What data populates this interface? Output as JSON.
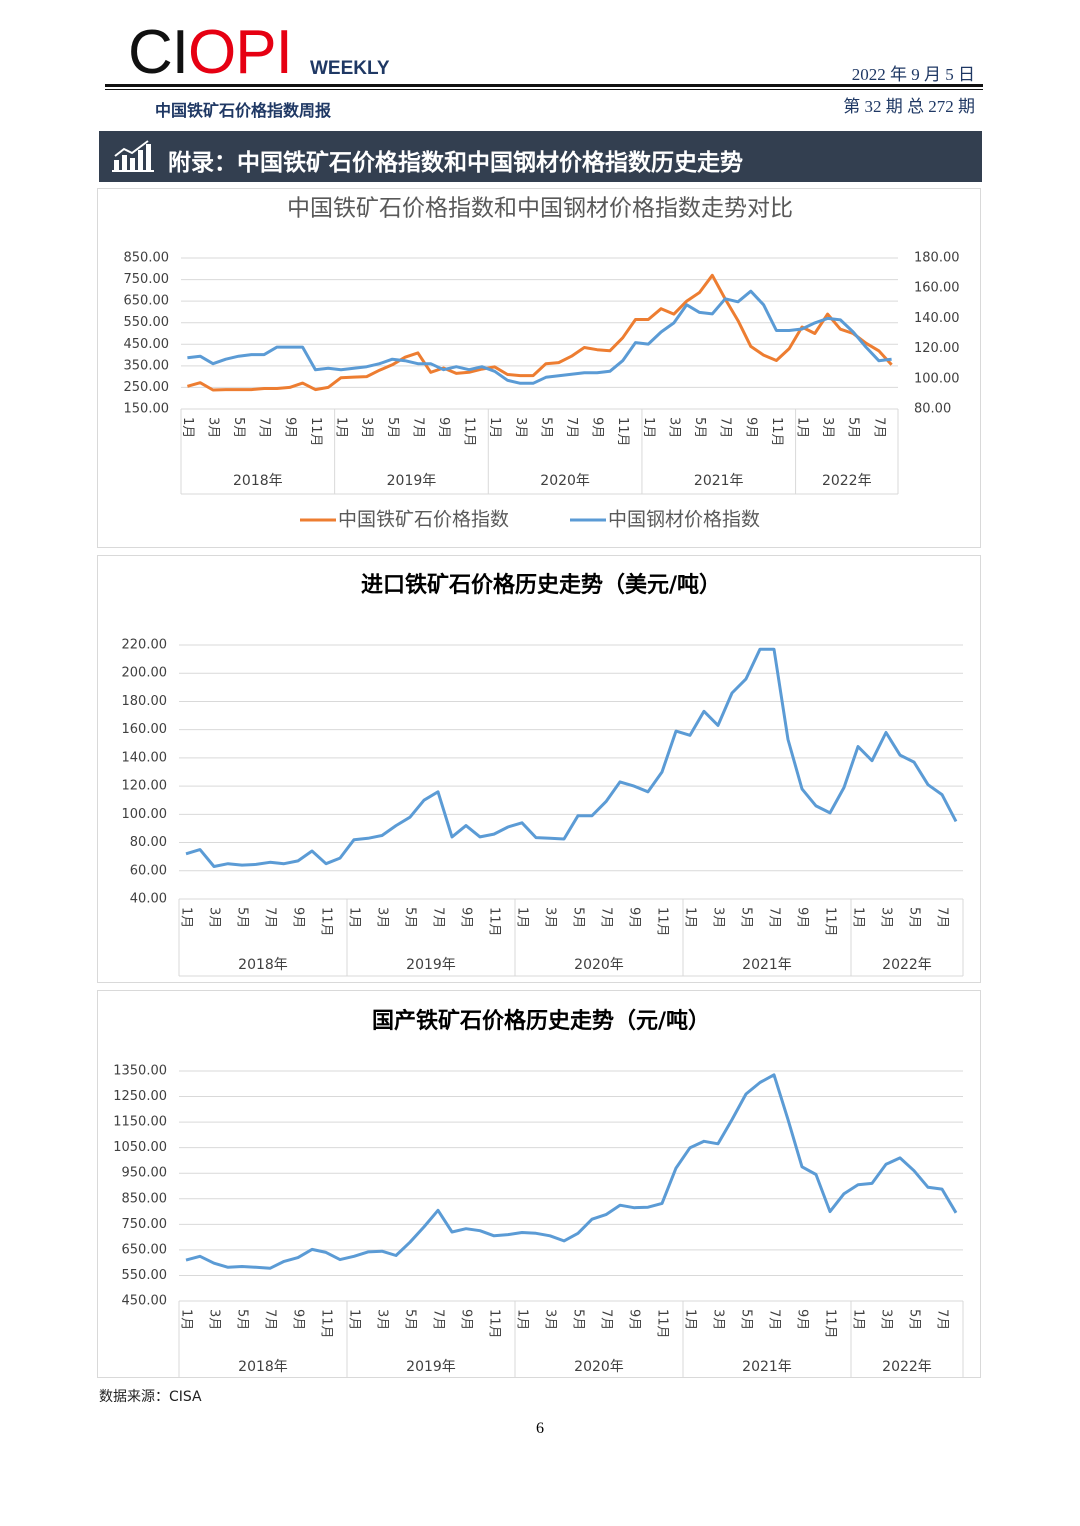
{
  "header": {
    "logo": [
      "CI",
      "OPI"
    ],
    "logo_tag": "WEEKLY",
    "date": "2022 年 9 月 5 日",
    "publication": "中国铁矿石价格指数周报",
    "issue": "第 32 期 总 272 期",
    "section_title": "附录：中国铁矿石价格指数和中国钢材价格指数历史走势"
  },
  "chart_data": [
    {
      "type": "line",
      "title": "中国铁矿石价格指数和中国钢材价格指数走势对比",
      "grid": true,
      "legend": "bottom",
      "groups": [
        {
          "name": "2018年",
          "categories": [
            "1月",
            null,
            "3月",
            null,
            "5月",
            null,
            "7月",
            null,
            "9月",
            null,
            "11月",
            null
          ]
        },
        {
          "name": "2019年",
          "categories": [
            "1月",
            null,
            "3月",
            null,
            "5月",
            null,
            "7月",
            null,
            "9月",
            null,
            "11月",
            null
          ]
        },
        {
          "name": "2020年",
          "categories": [
            "1月",
            null,
            "3月",
            null,
            "5月",
            null,
            "7月",
            null,
            "9月",
            null,
            "11月",
            null
          ]
        },
        {
          "name": "2021年",
          "categories": [
            "1月",
            null,
            "3月",
            null,
            "5月",
            null,
            "7月",
            null,
            "9月",
            null,
            "11月",
            null
          ]
        },
        {
          "name": "2022年",
          "categories": [
            "1月",
            null,
            "3月",
            null,
            "5月",
            null,
            "7月",
            null
          ]
        }
      ],
      "ylim": [
        150,
        850
      ],
      "yticks": [
        {
          "value": 150,
          "label": "150.00"
        },
        {
          "value": 250,
          "label": "250.00"
        },
        {
          "value": 350,
          "label": "350.00"
        },
        {
          "value": 450,
          "label": "450.00"
        },
        {
          "value": 550,
          "label": "550.00"
        },
        {
          "value": 650,
          "label": "650.00"
        },
        {
          "value": 750,
          "label": "750.00"
        },
        {
          "value": 850,
          "label": "850.00"
        }
      ],
      "y2lim": [
        80,
        180
      ],
      "y2ticks": [
        {
          "value": 80,
          "label": "80.00"
        },
        {
          "value": 100,
          "label": "100.00"
        },
        {
          "value": 120,
          "label": "120.00"
        },
        {
          "value": 140,
          "label": "140.00"
        },
        {
          "value": 160,
          "label": "160.00"
        },
        {
          "value": 180,
          "label": "180.00"
        }
      ],
      "series": [
        {
          "name": "中国铁矿石价格指数",
          "color": "#ed7d31",
          "values": [
            255,
            272,
            238,
            240,
            240,
            240,
            245,
            245,
            250,
            270,
            240,
            250,
            295,
            298,
            300,
            330,
            355,
            390,
            410,
            320,
            340,
            315,
            320,
            335,
            345,
            310,
            305,
            305,
            360,
            365,
            395,
            435,
            425,
            420,
            480,
            565,
            565,
            615,
            590,
            650,
            690,
            770,
            660,
            560,
            440,
            400,
            375,
            430,
            530,
            500,
            590,
            520,
            500,
            455,
            420,
            355
          ]
        },
        {
          "name": "中国钢材价格指数",
          "color": "#5b9bd5",
          "axis": "y2",
          "values": [
            114,
            115,
            110,
            113,
            115,
            116,
            116,
            121,
            121,
            121,
            106,
            107,
            106,
            107,
            108,
            110,
            113,
            112,
            110,
            110,
            106,
            108,
            106,
            108,
            105,
            99,
            97,
            97,
            101,
            102,
            103,
            104,
            104,
            105,
            112,
            124,
            123,
            131,
            137,
            149,
            144,
            143,
            153,
            151,
            158,
            149,
            132,
            132,
            133,
            137,
            140,
            139,
            131,
            121,
            112,
            113
          ]
        }
      ]
    },
    {
      "type": "line",
      "title": "进口铁矿石价格历史走势（美元/吨）",
      "grid": true,
      "groups": [
        {
          "name": "2018年",
          "categories": [
            "1月",
            null,
            "3月",
            null,
            "5月",
            null,
            "7月",
            null,
            "9月",
            null,
            "11月",
            null
          ]
        },
        {
          "name": "2019年",
          "categories": [
            "1月",
            null,
            "3月",
            null,
            "5月",
            null,
            "7月",
            null,
            "9月",
            null,
            "11月",
            null
          ]
        },
        {
          "name": "2020年",
          "categories": [
            "1月",
            null,
            "3月",
            null,
            "5月",
            null,
            "7月",
            null,
            "9月",
            null,
            "11月",
            null
          ]
        },
        {
          "name": "2021年",
          "categories": [
            "1月",
            null,
            "3月",
            null,
            "5月",
            null,
            "7月",
            null,
            "9月",
            null,
            "11月",
            null
          ]
        },
        {
          "name": "2022年",
          "categories": [
            "1月",
            null,
            "3月",
            null,
            "5月",
            null,
            "7月",
            null
          ]
        }
      ],
      "ylim": [
        40,
        220
      ],
      "yticks": [
        {
          "value": 40,
          "label": "40.00"
        },
        {
          "value": 60,
          "label": "60.00"
        },
        {
          "value": 80,
          "label": "80.00"
        },
        {
          "value": 100,
          "label": "100.00"
        },
        {
          "value": 120,
          "label": "120.00"
        },
        {
          "value": 140,
          "label": "140.00"
        },
        {
          "value": 160,
          "label": "160.00"
        },
        {
          "value": 180,
          "label": "180.00"
        },
        {
          "value": 200,
          "label": "200.00"
        },
        {
          "value": 220,
          "label": "220.00"
        }
      ],
      "series": [
        {
          "color": "#5b9bd5",
          "values": [
            72,
            75,
            63,
            65,
            64,
            64.5,
            66,
            65,
            67,
            74,
            65,
            69,
            82,
            83,
            85,
            92,
            98,
            110,
            116,
            84,
            92,
            84,
            86,
            91,
            94,
            83.5,
            83,
            82.5,
            99,
            99,
            109,
            123,
            120,
            116,
            130,
            159,
            156,
            173,
            163,
            186,
            196,
            217,
            217,
            153,
            118,
            106,
            101,
            119,
            148,
            138,
            158,
            142,
            137,
            121,
            114,
            95
          ]
        }
      ]
    },
    {
      "type": "line",
      "title": "国产铁矿石价格历史走势（元/吨）",
      "grid": true,
      "groups": [
        {
          "name": "2018年",
          "categories": [
            "1月",
            null,
            "3月",
            null,
            "5月",
            null,
            "7月",
            null,
            "9月",
            null,
            "11月",
            null
          ]
        },
        {
          "name": "2019年",
          "categories": [
            "1月",
            null,
            "3月",
            null,
            "5月",
            null,
            "7月",
            null,
            "9月",
            null,
            "11月",
            null
          ]
        },
        {
          "name": "2020年",
          "categories": [
            "1月",
            null,
            "3月",
            null,
            "5月",
            null,
            "7月",
            null,
            "9月",
            null,
            "11月",
            null
          ]
        },
        {
          "name": "2021年",
          "categories": [
            "1月",
            null,
            "3月",
            null,
            "5月",
            null,
            "7月",
            null,
            "9月",
            null,
            "11月",
            null
          ]
        },
        {
          "name": "2022年",
          "categories": [
            "1月",
            null,
            "3月",
            null,
            "5月",
            null,
            "7月",
            null
          ]
        }
      ],
      "ylim": [
        450,
        1350
      ],
      "yticks": [
        {
          "value": 450,
          "label": "450.00"
        },
        {
          "value": 550,
          "label": "550.00"
        },
        {
          "value": 650,
          "label": "650.00"
        },
        {
          "value": 750,
          "label": "750.00"
        },
        {
          "value": 850,
          "label": "850.00"
        },
        {
          "value": 950,
          "label": "950.00"
        },
        {
          "value": 1050,
          "label": "1050.00"
        },
        {
          "value": 1150,
          "label": "1150.00"
        },
        {
          "value": 1250,
          "label": "1250.00"
        },
        {
          "value": 1350,
          "label": "1350.00"
        }
      ],
      "series": [
        {
          "color": "#5b9bd5",
          "values": [
            610,
            625,
            598,
            582,
            585,
            582,
            578,
            605,
            620,
            652,
            640,
            612,
            625,
            642,
            645,
            628,
            680,
            740,
            805,
            720,
            733,
            725,
            705,
            710,
            718,
            715,
            705,
            685,
            715,
            770,
            788,
            825,
            815,
            817,
            832,
            970,
            1050,
            1075,
            1065,
            1160,
            1260,
            1305,
            1335,
            1160,
            975,
            945,
            800,
            870,
            905,
            910,
            985,
            1010,
            960,
            895,
            888,
            795
          ]
        }
      ]
    }
  ],
  "footer": {
    "source": "数据来源：CISA",
    "page": "6"
  }
}
